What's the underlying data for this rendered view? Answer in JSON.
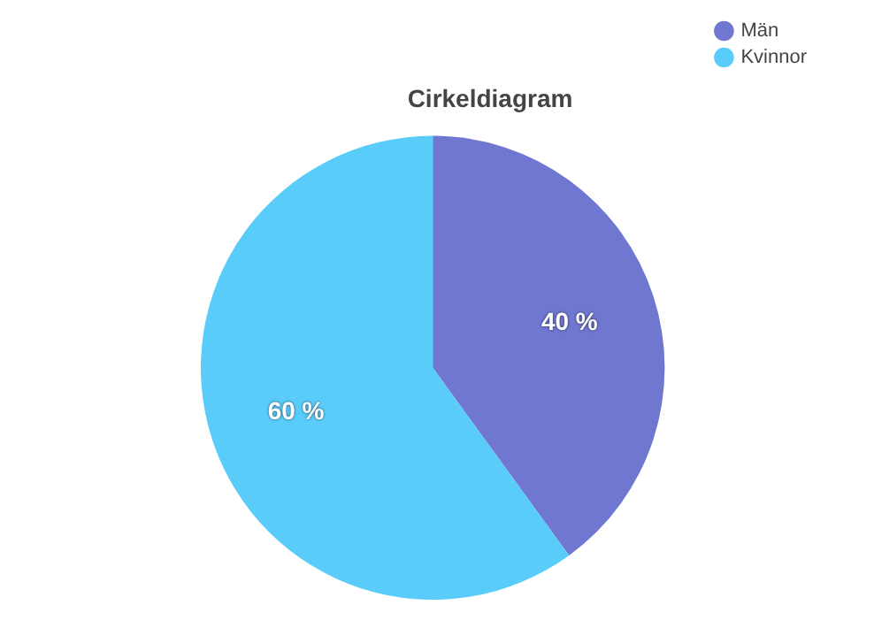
{
  "chart_data": {
    "type": "pie",
    "title": "Cirkeldiagram",
    "categories": [
      "Män",
      "Kvinnor"
    ],
    "values": [
      40,
      60
    ],
    "colors": [
      "#6f77d1",
      "#5accfa"
    ],
    "value_labels": [
      "40 %",
      "60 %"
    ],
    "legend": "top right"
  }
}
